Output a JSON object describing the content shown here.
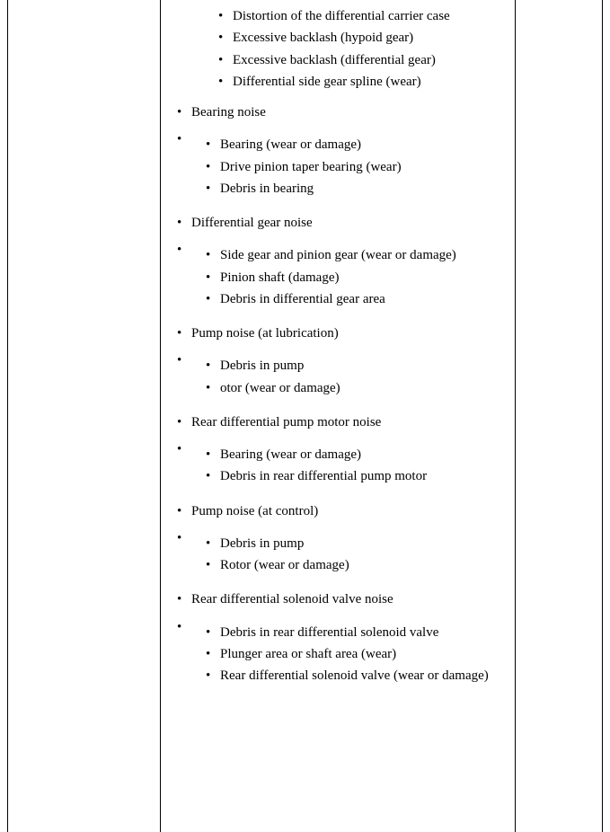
{
  "initial_sub": [
    "Distortion of the differential carrier case",
    "Excessive backlash (hypoid gear)",
    "Excessive backlash (differential gear)",
    "Differential side gear spline (wear)"
  ],
  "sections": [
    {
      "heading": "Bearing noise",
      "items": [
        "Bearing (wear or damage)",
        "Drive pinion taper bearing (wear)",
        "Debris in bearing"
      ]
    },
    {
      "heading": "Differential gear noise",
      "items": [
        "Side gear and pinion gear (wear or damage)",
        "Pinion shaft (damage)",
        "Debris in differential gear area"
      ]
    },
    {
      "heading": "Pump noise (at lubrication)",
      "items": [
        "Debris in pump",
        "otor (wear or damage)"
      ]
    },
    {
      "heading": "Rear differential pump motor noise",
      "items": [
        "Bearing (wear or damage)",
        "Debris in rear differential pump motor"
      ]
    },
    {
      "heading": "Pump noise (at control)",
      "items": [
        "Debris in pump",
        "Rotor (wear or damage)"
      ]
    },
    {
      "heading": "Rear differential solenoid valve noise",
      "items": [
        "Debris in rear differential solenoid valve",
        "Plunger area or shaft area (wear)",
        "Rear differential solenoid valve (wear or damage)"
      ]
    }
  ]
}
